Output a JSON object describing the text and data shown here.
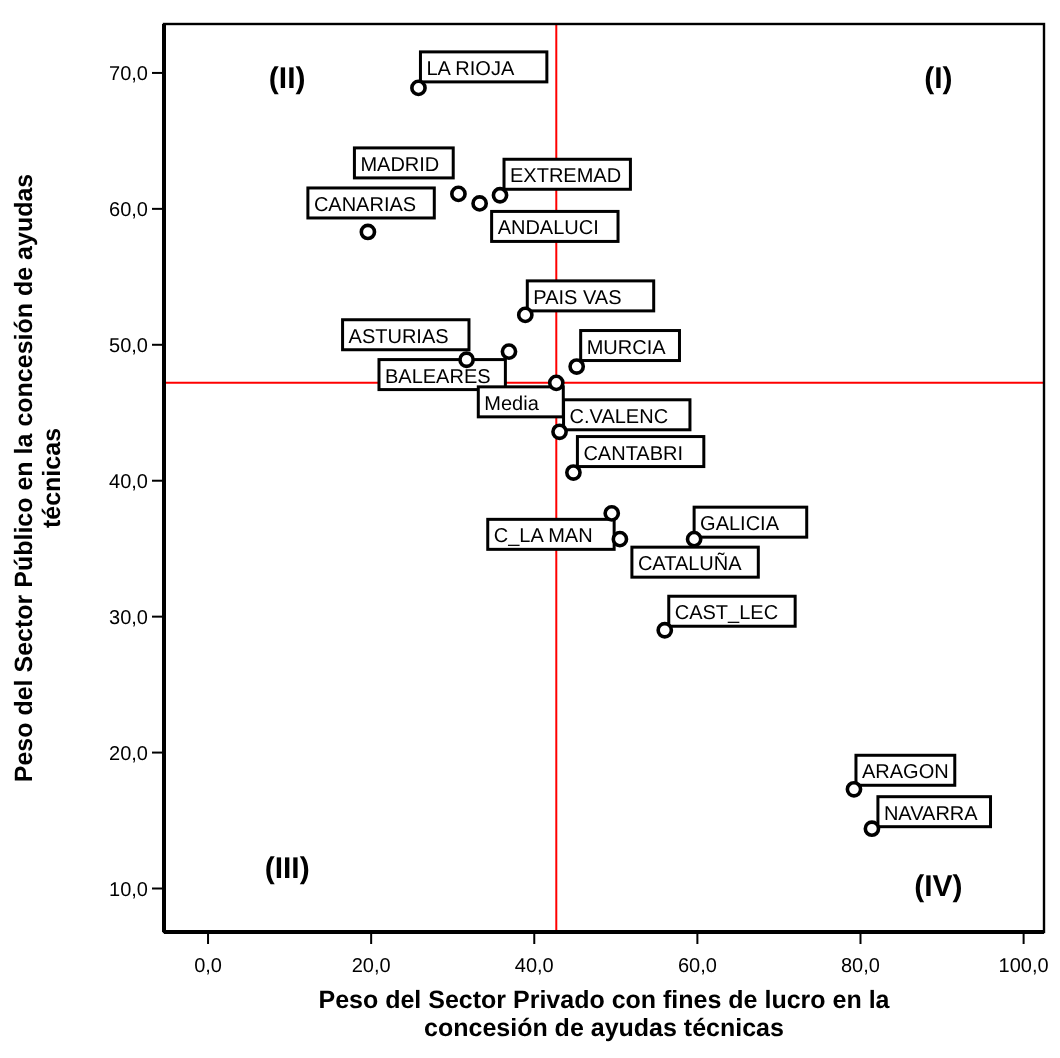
{
  "chart_data": {
    "type": "scatter",
    "xlabel": "Peso del Sector Privado con fines de lucro en la concesión de ayudas técnicas",
    "ylabel": "Peso del Sector Público en la concesión de ayudas técnicas",
    "xlim": [
      -5.4,
      102.5
    ],
    "ylim": [
      6.8,
      73.6
    ],
    "xticks": [
      {
        "value": 0,
        "label": "0,0"
      },
      {
        "value": 20,
        "label": "20,0"
      },
      {
        "value": 40,
        "label": "40,0"
      },
      {
        "value": 60,
        "label": "60,0"
      },
      {
        "value": 80,
        "label": "80,0"
      },
      {
        "value": 100,
        "label": "100,0"
      }
    ],
    "yticks": [
      {
        "value": 10,
        "label": "10,0"
      },
      {
        "value": 20,
        "label": "20,0"
      },
      {
        "value": 30,
        "label": "30,0"
      },
      {
        "value": 40,
        "label": "40,0"
      },
      {
        "value": 50,
        "label": "50,0"
      },
      {
        "value": 60,
        "label": "60,0"
      },
      {
        "value": 70,
        "label": "70,0"
      }
    ],
    "grid": false,
    "marker": "circle",
    "series": [
      {
        "color": "#000000",
        "x": [
          25.8,
          30.7,
          33.3,
          35.8,
          19.6,
          38.9,
          31.7,
          36.9,
          45.2,
          42.7,
          43.1,
          44.8,
          49.5,
          50.5,
          59.6,
          56.0,
          79.2,
          81.4
        ],
        "values": [
          68.9,
          61.1,
          60.4,
          61.0,
          58.3,
          52.2,
          48.9,
          49.5,
          48.4,
          47.2,
          43.6,
          40.6,
          37.6,
          35.7,
          35.7,
          29.0,
          17.3,
          14.4
        ]
      }
    ],
    "ref_lines": [
      {
        "axis": "x",
        "value": 42.7,
        "color": "#ff0000"
      },
      {
        "axis": "y",
        "value": 47.2,
        "color": "#ff0000"
      }
    ],
    "annotations": [
      {
        "text": "LA RIOJA",
        "x": 25.8,
        "y": 68.9
      },
      {
        "text": "MADRID",
        "x": 30.7,
        "y": 61.1
      },
      {
        "text": "ANDALUCI",
        "x": 33.3,
        "y": 60.4
      },
      {
        "text": "EXTREMAD",
        "x": 35.8,
        "y": 61.0
      },
      {
        "text": "CANARIAS",
        "x": 19.6,
        "y": 58.3
      },
      {
        "text": "PAIS VAS",
        "x": 38.9,
        "y": 52.2
      },
      {
        "text": "ASTURIAS",
        "x": 31.7,
        "y": 48.9
      },
      {
        "text": "BALEARES",
        "x": 36.9,
        "y": 49.5
      },
      {
        "text": "MURCIA",
        "x": 45.2,
        "y": 48.4
      },
      {
        "text": "Media",
        "x": 42.7,
        "y": 47.2
      },
      {
        "text": "C.VALENC",
        "x": 43.1,
        "y": 43.6
      },
      {
        "text": "CANTABRI",
        "x": 44.8,
        "y": 40.6
      },
      {
        "text": "C_LA MAN",
        "x": 49.5,
        "y": 37.6
      },
      {
        "text": "CATALUÑA",
        "x": 50.5,
        "y": 35.7
      },
      {
        "text": "GALICIA",
        "x": 59.6,
        "y": 35.7
      },
      {
        "text": "CAST_LEC",
        "x": 56.0,
        "y": 29.0
      },
      {
        "text": "ARAGON",
        "x": 79.2,
        "y": 17.3
      },
      {
        "text": "NAVARRA",
        "x": 81.4,
        "y": 14.4
      },
      "(I)",
      "(II)",
      "(III)",
      "(IV)"
    ]
  }
}
